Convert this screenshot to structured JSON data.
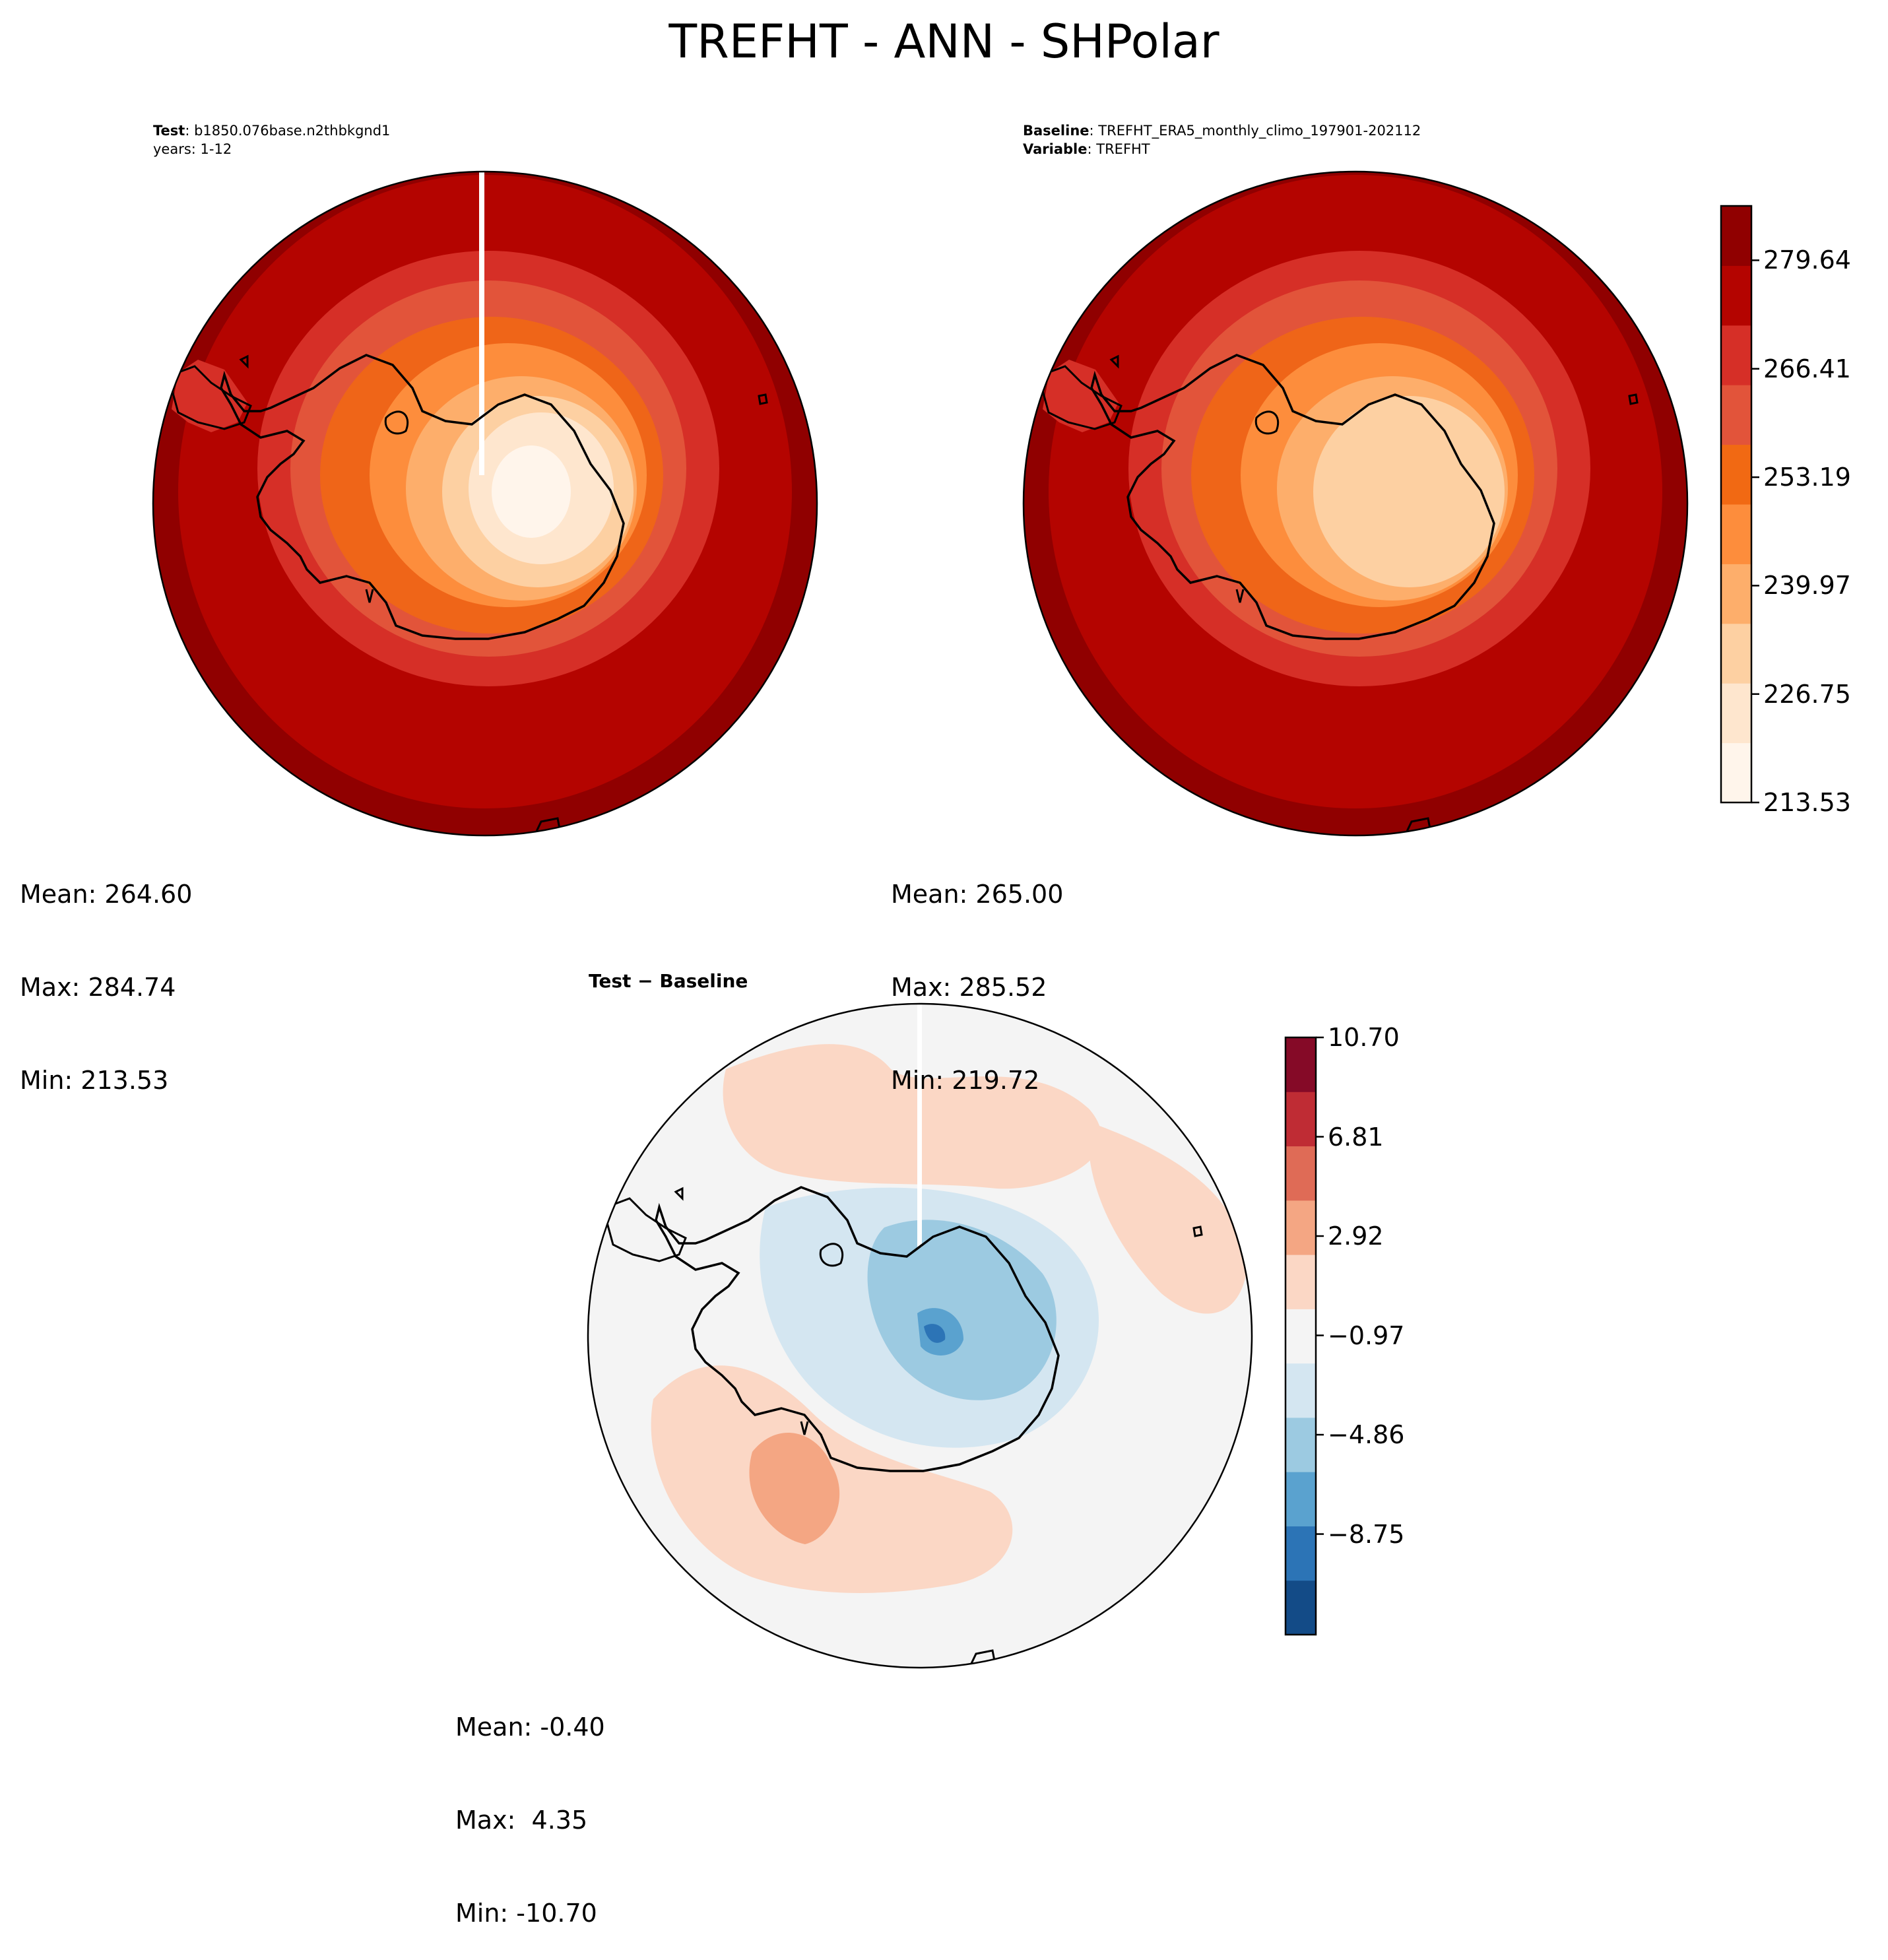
{
  "title": "TREFHT - ANN - SHPolar",
  "test_panel": {
    "header_label_1": "Test",
    "header_value_1": "b1850.076base.n2thbkgnd1",
    "header_line_2": "years: 1-12",
    "stats": {
      "mean": "Mean: 264.60",
      "max": "Max: 284.74",
      "min": "Min: 213.53"
    }
  },
  "baseline_panel": {
    "header_label_1": "Baseline",
    "header_value_1": "TREFHT_ERA5_monthly_climo_197901-202112",
    "header_label_2": "Variable",
    "header_value_2": "TREFHT",
    "stats": {
      "mean": "Mean: 265.00",
      "max": "Max: 285.52",
      "min": "Min: 219.72"
    }
  },
  "diff_panel": {
    "title": "Test − Baseline",
    "stats": {
      "mean": "Mean: -0.40",
      "max": "Max:  4.35",
      "min": "Min: -10.70"
    }
  },
  "colorbar_abs": {
    "min": 213.53,
    "max": 286.27,
    "ticks": [
      "213.53",
      "226.75",
      "239.97",
      "253.19",
      "266.41",
      "279.64"
    ],
    "tick_values": [
      213.53,
      226.75,
      239.97,
      253.19,
      266.41,
      279.64
    ],
    "colors": [
      "#fff5eb",
      "#fee6ce",
      "#fdd0a2",
      "#fdae6b",
      "#fd8d3c",
      "#f16913",
      "#e2543a",
      "#d62f27",
      "#b40400",
      "#900000"
    ]
  },
  "colorbar_diff": {
    "min": -12.69,
    "max": 10.7,
    "ticks": [
      "10.70",
      "6.81",
      "2.92",
      "−0.97",
      "−4.86",
      "−8.75"
    ],
    "tick_values": [
      10.7,
      6.81,
      2.92,
      -0.97,
      -4.86,
      -8.75
    ],
    "colors": [
      "#134b87",
      "#2c74b6",
      "#5aa2cf",
      "#9ccae1",
      "#d4e6f1",
      "#f4f4f4",
      "#fbd7c5",
      "#f4a683",
      "#df6b56",
      "#bf2c34",
      "#850a27"
    ]
  }
}
